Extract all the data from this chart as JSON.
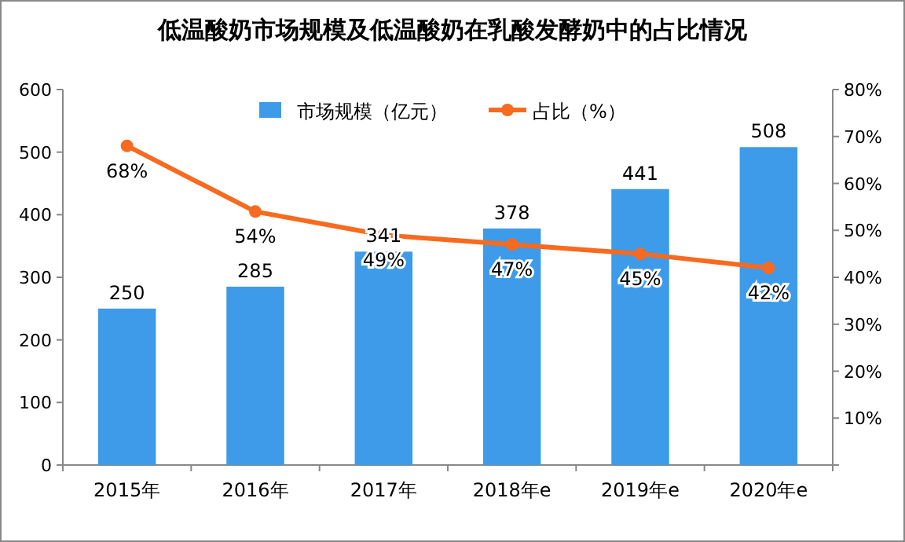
{
  "chart_data": {
    "type": "bar",
    "title": "低温酸奶市场规模及低温酸奶在乳酸发酵奶中的占比情况",
    "categories": [
      "2015年",
      "2016年",
      "2017年",
      "2018年e",
      "2019年e",
      "2020年e"
    ],
    "series": [
      {
        "name": "市场规模（亿元）",
        "color": "#3d9be9",
        "values": [
          250,
          285,
          341,
          378,
          441,
          508
        ],
        "value_labels": [
          "250",
          "285",
          "341",
          "378",
          "441",
          "508"
        ]
      },
      {
        "name": "占比（%）",
        "type": "line",
        "axis": "y2",
        "color": "#f86a1f",
        "values": [
          68,
          54,
          49,
          47,
          45,
          42
        ],
        "value_labels": [
          "68%",
          "54%",
          "49%",
          "47%",
          "45%",
          "42%"
        ]
      }
    ],
    "ylim": [
      0,
      600
    ],
    "yticks": [
      0,
      100,
      200,
      300,
      400,
      500,
      600
    ],
    "y2lim": [
      0,
      80
    ],
    "y2ticks": [
      {
        "value": 0,
        "label": null
      },
      {
        "value": 10,
        "label": "10%"
      },
      {
        "value": 20,
        "label": "20%"
      },
      {
        "value": 30,
        "label": "30%"
      },
      {
        "value": 40,
        "label": "40%"
      },
      {
        "value": 50,
        "label": "50%"
      },
      {
        "value": 60,
        "label": "60%"
      },
      {
        "value": 70,
        "label": "70%"
      },
      {
        "value": 80,
        "label": "80%"
      }
    ],
    "grid": false,
    "legend": "top",
    "marker": "circle",
    "line_style": "solid"
  }
}
